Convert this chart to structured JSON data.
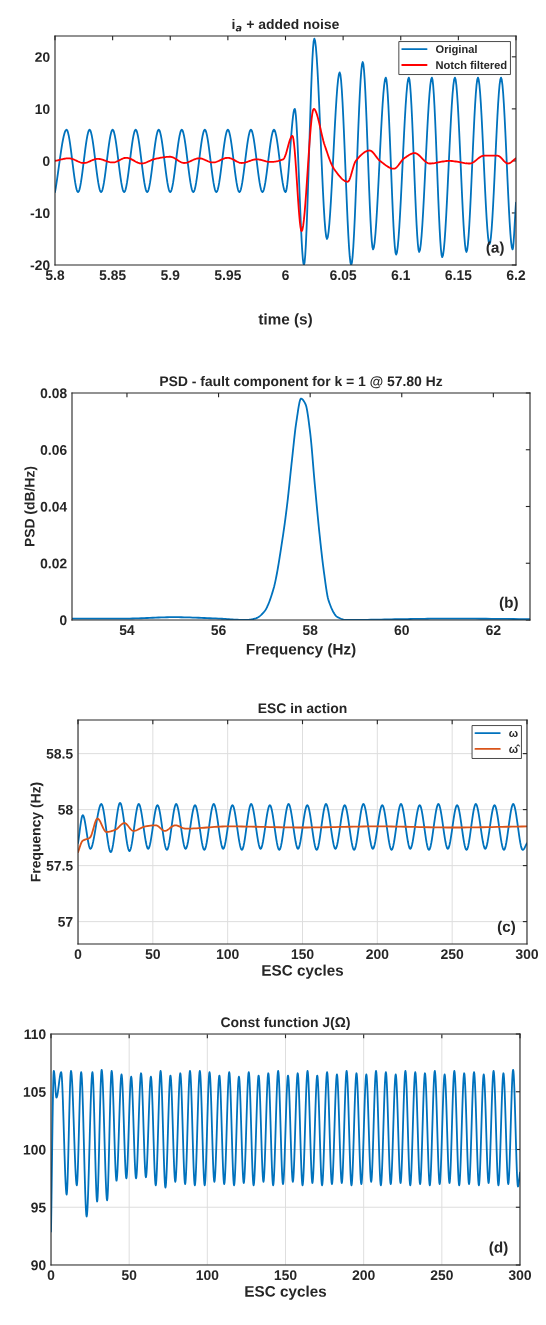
{
  "chart_data": [
    {
      "type": "line",
      "title": "i$_{a}$ + added noise",
      "xlabel": "time (s)",
      "xlim": [
        5.8,
        6.2
      ],
      "ylim": [
        -20,
        24
      ],
      "xticks": [
        5.8,
        5.85,
        5.9,
        5.95,
        6,
        6.05,
        6.1,
        6.15,
        6.2
      ],
      "yticks": [
        -20,
        -10,
        0,
        10,
        20
      ],
      "legend": "top right",
      "annotations": [
        "(a)"
      ],
      "series": [
        {
          "name": "Original",
          "color": "#0072bd",
          "x": [
            5.8,
            5.81,
            5.82,
            5.83,
            5.84,
            5.85,
            5.86,
            5.87,
            5.88,
            5.89,
            5.9,
            5.91,
            5.92,
            5.93,
            5.94,
            5.95,
            5.96,
            5.97,
            5.98,
            5.99,
            6.0,
            6.008,
            6.016,
            6.025,
            6.036,
            6.047,
            6.057,
            6.067,
            6.076,
            6.087,
            6.096,
            6.107,
            6.116,
            6.127,
            6.136,
            6.147,
            6.157,
            6.167,
            6.177,
            6.187,
            6.197,
            6.2
          ],
          "values": [
            -6,
            6,
            -6,
            6,
            -6,
            6,
            -6,
            6,
            -6,
            6,
            -6,
            6,
            -6,
            6,
            -6,
            6,
            -6,
            6,
            -6,
            6,
            -6,
            10,
            -20,
            23.5,
            -15,
            17,
            -20,
            19,
            -17,
            16,
            -18,
            16,
            -17.5,
            16,
            -18.5,
            16,
            -17.5,
            16,
            -16,
            16,
            -17,
            -8
          ]
        },
        {
          "name": "Notch filtered",
          "color": "#ff0000",
          "x": [
            5.8,
            5.812,
            5.825,
            5.837,
            5.85,
            5.862,
            5.875,
            5.887,
            5.9,
            5.912,
            5.925,
            5.937,
            5.95,
            5.962,
            5.975,
            5.987,
            5.998,
            6.006,
            6.014,
            6.0245,
            6.034,
            6.042,
            6.054,
            6.061,
            6.073,
            6.082,
            6.094,
            6.103,
            6.112,
            6.125,
            6.142,
            6.16,
            6.172,
            6.184,
            6.193,
            6.2
          ],
          "values": [
            0,
            0.5,
            -0.4,
            0.4,
            -0.3,
            0.6,
            -0.5,
            0.4,
            0.8,
            -0.4,
            0.5,
            -0.3,
            0.6,
            -0.4,
            0.3,
            -0.2,
            0.3,
            4.8,
            -13.5,
            10,
            3,
            -1.5,
            -4,
            0,
            2,
            0,
            -1.5,
            0.5,
            1.5,
            -0.5,
            0,
            -0.5,
            1,
            1,
            -0.5,
            0.5
          ]
        }
      ]
    },
    {
      "type": "line",
      "title": "PSD - fault component for k = 1 @ 57.80 Hz",
      "xlabel": "Frequency (Hz)",
      "ylabel": "PSD (dB/Hz)",
      "xlim": [
        52.8,
        62.8
      ],
      "ylim": [
        0,
        0.08
      ],
      "xticks": [
        54,
        56,
        58,
        60,
        62
      ],
      "yticks": [
        0,
        0.02,
        0.04,
        0.06,
        0.08
      ],
      "annotations": [
        "(b)"
      ],
      "series": [
        {
          "color": "#0072bd",
          "x": [
            52.8,
            54,
            55,
            56,
            56.6,
            56.8,
            57.0,
            57.2,
            57.4,
            57.5,
            57.6,
            57.7,
            57.8,
            57.9,
            58.0,
            58.1,
            58.2,
            58.3,
            58.4,
            58.6,
            58.8,
            60,
            61,
            62.8
          ],
          "values": [
            0.0005,
            0.0005,
            0.001,
            0.0005,
            0,
            0.0005,
            0.003,
            0.011,
            0.029,
            0.041,
            0.056,
            0.07,
            0.078,
            0.076,
            0.066,
            0.048,
            0.031,
            0.017,
            0.007,
            0.001,
            0,
            0.0003,
            0.0005,
            0.0003
          ]
        }
      ]
    },
    {
      "type": "line",
      "title": "ESC in action",
      "xlabel": "ESC cycles",
      "ylabel": "Frequency (Hz)",
      "xlim": [
        0,
        300
      ],
      "ylim": [
        56.8,
        58.8
      ],
      "xticks": [
        0,
        50,
        100,
        150,
        200,
        250,
        300
      ],
      "yticks": [
        57,
        57.5,
        58,
        58.5
      ],
      "grid": true,
      "legend": "top right",
      "annotations": [
        "(c)"
      ],
      "series": [
        {
          "name": "ω",
          "color": "#0072bd",
          "x": [
            0,
            3.2,
            8.3,
            15.6,
            21.9,
            28.1,
            34.4,
            40.6,
            46.9,
            53.1,
            59.4,
            65.6,
            71.9,
            78.2,
            84.4,
            90.7,
            97.0,
            103.2,
            109.5,
            115.7,
            122.0,
            128.2,
            134.5,
            140.7,
            147.0,
            153.2,
            159.5,
            165.7,
            172.0,
            178.2,
            184.5,
            190.7,
            197.0,
            203.3,
            209.5,
            215.8,
            222.0,
            228.3,
            234.5,
            240.8,
            247.1,
            253.3,
            259.6,
            265.8,
            272.1,
            278.3,
            284.6,
            290.8,
            297.1,
            300
          ],
          "values": [
            57.7,
            57.95,
            57.65,
            58.05,
            57.62,
            58.06,
            57.63,
            58.05,
            57.65,
            58.04,
            57.64,
            58.05,
            57.65,
            58.04,
            57.64,
            58.05,
            57.65,
            58.04,
            57.64,
            58.05,
            57.65,
            58.04,
            57.64,
            58.05,
            57.65,
            58.04,
            57.64,
            58.05,
            57.65,
            58.04,
            57.64,
            58.05,
            57.65,
            58.04,
            57.64,
            58.05,
            57.65,
            58.04,
            57.64,
            58.05,
            57.65,
            58.04,
            57.64,
            58.05,
            57.65,
            58.04,
            57.64,
            58.05,
            57.64,
            57.7
          ]
        },
        {
          "name": "ω̂",
          "color": "#d95319",
          "x": [
            0,
            3,
            8,
            13,
            19,
            25,
            31,
            37,
            45,
            52,
            58,
            65,
            72,
            100,
            150,
            200,
            250,
            300
          ],
          "values": [
            57.62,
            57.72,
            57.75,
            57.92,
            57.8,
            57.82,
            57.88,
            57.81,
            57.85,
            57.86,
            57.81,
            57.86,
            57.83,
            57.85,
            57.84,
            57.85,
            57.84,
            57.85
          ]
        }
      ]
    },
    {
      "type": "line",
      "title": "Const function J(Ω)",
      "xlabel": "ESC cycles",
      "xlim": [
        0,
        300
      ],
      "ylim": [
        90,
        110
      ],
      "xticks": [
        0,
        50,
        100,
        150,
        200,
        250,
        300
      ],
      "yticks": [
        90,
        95,
        100,
        105,
        110
      ],
      "grid": true,
      "annotations": [
        "(d)"
      ],
      "series": [
        {
          "color": "#0072bd",
          "x": [
            0,
            1.8,
            3.5,
            6.5,
            10.0,
            12.8,
            16.5,
            19.3,
            22.8,
            26.5,
            29.5,
            32.4,
            35.9,
            38.8,
            41.9,
            45.1,
            48.2,
            51.3,
            54.4,
            57.6,
            60.7,
            63.9,
            67.0,
            70.1,
            73.2,
            76.4,
            79.5,
            82.7,
            85.8,
            88.9,
            92.0,
            95.2,
            98.3,
            101.4,
            104.5,
            107.7,
            110.8,
            114.0,
            117.1,
            120.2,
            123.3,
            126.5,
            129.6,
            132.8,
            135.9,
            139.0,
            142.1,
            145.3,
            148.4,
            151.6,
            154.7,
            157.8,
            160.9,
            164.1,
            167.2,
            170.3,
            173.4,
            176.6,
            179.7,
            182.9,
            186.0,
            189.1,
            192.2,
            195.4,
            198.5,
            201.7,
            204.8,
            207.9,
            211.0,
            214.2,
            217.3,
            220.5,
            223.6,
            226.7,
            229.8,
            233.0,
            236.1,
            239.2,
            242.3,
            245.5,
            248.6,
            251.8,
            254.9,
            258.0,
            261.1,
            264.3,
            267.4,
            270.6,
            273.7,
            276.8,
            279.9,
            283.1,
            286.2,
            289.4,
            292.5,
            295.6,
            298.7,
            300
          ],
          "values": [
            92.9,
            106.8,
            104.5,
            106.7,
            96.1,
            106.8,
            96.9,
            106.7,
            94.2,
            106.7,
            95.5,
            106.9,
            95.6,
            106.8,
            97.3,
            106.5,
            97.5,
            106.3,
            97.5,
            106.6,
            97.6,
            106.3,
            96.9,
            106.8,
            96.7,
            106.4,
            97.2,
            106.6,
            97.0,
            106.8,
            96.9,
            106.8,
            96.9,
            106.7,
            97.2,
            106.4,
            97.0,
            106.7,
            96.9,
            106.3,
            97.1,
            106.7,
            96.9,
            106.4,
            97.2,
            106.6,
            96.9,
            106.8,
            97.0,
            106.4,
            97.2,
            106.6,
            96.9,
            106.8,
            97.1,
            106.4,
            96.9,
            106.7,
            97.0,
            106.5,
            97.1,
            106.8,
            96.9,
            106.6,
            97.0,
            106.5,
            97.2,
            106.8,
            96.9,
            106.7,
            97.0,
            106.5,
            97.1,
            106.8,
            96.9,
            106.7,
            97.0,
            106.6,
            96.9,
            106.8,
            97.0,
            106.5,
            97.1,
            106.8,
            96.9,
            106.6,
            97.0,
            106.7,
            96.9,
            106.5,
            97.1,
            106.8,
            96.9,
            106.6,
            97.0,
            106.9,
            96.8,
            98.0
          ]
        }
      ]
    }
  ]
}
